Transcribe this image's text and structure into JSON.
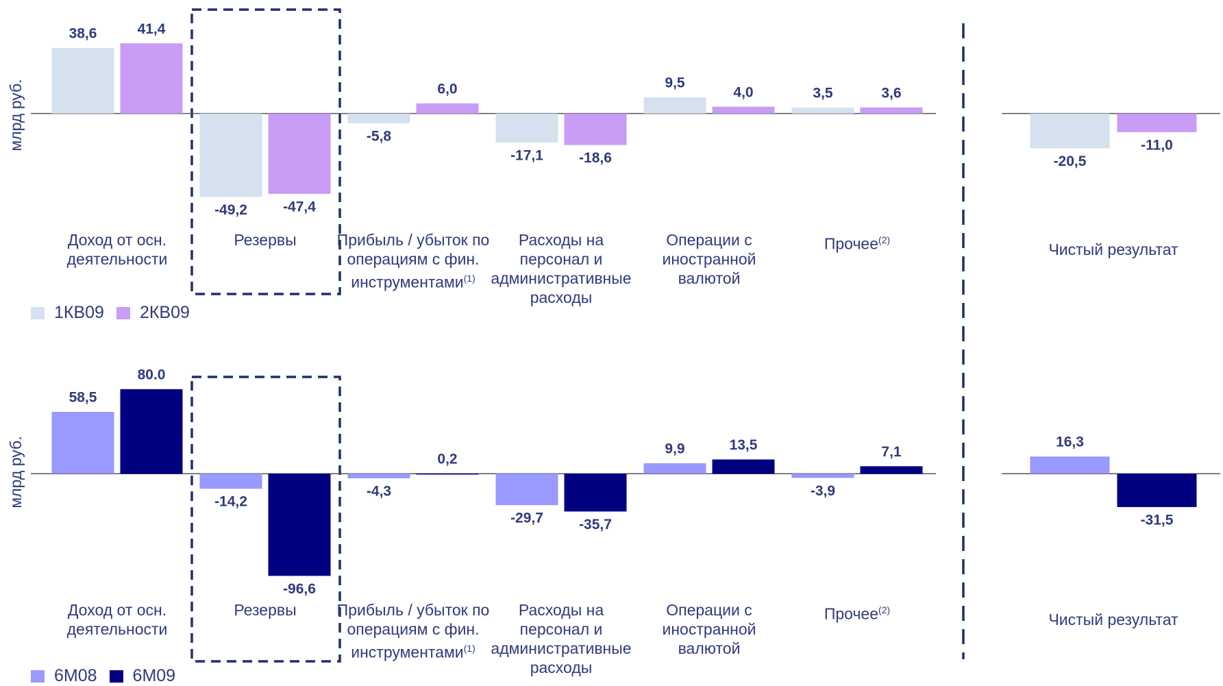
{
  "chart_data": [
    {
      "type": "bar",
      "y_label": "млрд руб.",
      "categories": [
        "Доход от осн. деятельности",
        "Резервы",
        "Прибыль / убыток по операциям с фин. инструментами",
        "Расходы на персонал и административные расходы",
        "Операции с иностранной валютой",
        "Прочее",
        "Чистый результат"
      ],
      "category_notes": [
        null,
        null,
        "(1)",
        null,
        null,
        "(2)",
        null
      ],
      "series": [
        {
          "name": "1КВ09",
          "color": "#d5e1ef",
          "values": [
            38.6,
            -49.2,
            -5.8,
            -17.1,
            9.5,
            3.5,
            -20.5
          ],
          "value_labels": [
            "38,6",
            "-49,2",
            "-5,8",
            "-17,1",
            "9,5",
            "3,5",
            "-20,5"
          ]
        },
        {
          "name": "2КВ09",
          "color": "#c99cf6",
          "values": [
            41.4,
            -47.4,
            6.0,
            -18.6,
            4.0,
            3.6,
            -11.0
          ],
          "value_labels": [
            "41,4",
            "-47,4",
            "6,0",
            "-18,6",
            "4,0",
            "3,6",
            "-11,0"
          ]
        }
      ],
      "ylim": [
        -60,
        50
      ]
    },
    {
      "type": "bar",
      "y_label": "млрд руб.",
      "categories": [
        "Доход от осн. деятельности",
        "Резервы",
        "Прибыль / убыток по операциям с фин. инструментами",
        "Расходы на персонал и административные расходы",
        "Операции с иностранной валютой",
        "Прочее",
        "Чистый результат"
      ],
      "category_notes": [
        null,
        null,
        "(1)",
        null,
        null,
        "(2)",
        null
      ],
      "series": [
        {
          "name": "6М08",
          "color": "#9999ff",
          "values": [
            58.5,
            -14.2,
            -4.3,
            -29.7,
            9.9,
            -3.9,
            16.3
          ],
          "value_labels": [
            "58,5",
            "-14,2",
            "-4,3",
            "-29,7",
            "9,9",
            "-3,9",
            "16,3"
          ]
        },
        {
          "name": "6М09",
          "color": "#000080",
          "values": [
            80.0,
            -96.6,
            0.2,
            -35.7,
            13.5,
            7.1,
            -31.5
          ],
          "value_labels": [
            "80.0",
            "-96,6",
            "0,2",
            "-35,7",
            "13,5",
            "7,1",
            "-31,5"
          ]
        }
      ],
      "ylim": [
        -110,
        100
      ]
    }
  ]
}
